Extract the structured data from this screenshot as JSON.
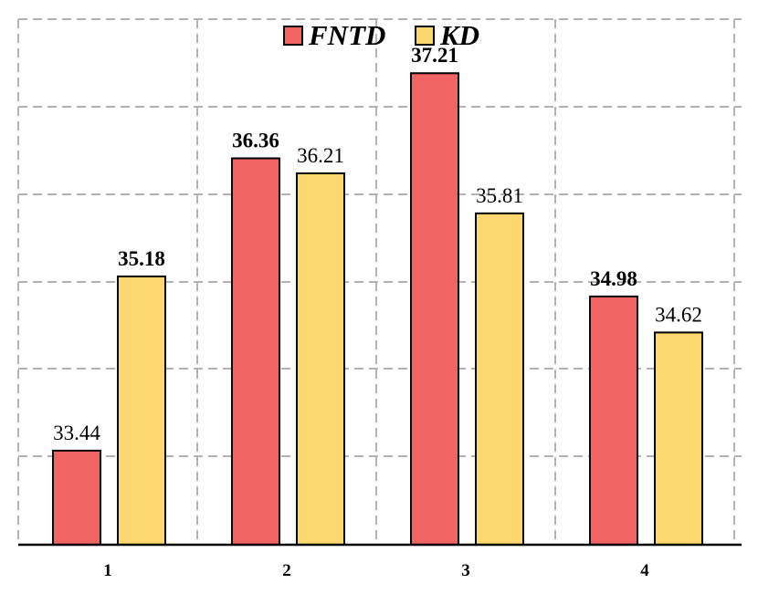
{
  "chart_data": {
    "type": "bar",
    "categories": [
      "1",
      "2",
      "3",
      "4"
    ],
    "series": [
      {
        "name": "FNTD",
        "color": "#f06464",
        "values": [
          33.44,
          36.36,
          37.21,
          34.98
        ],
        "labels": [
          "33.44",
          "36.36",
          "37.21",
          "34.98"
        ],
        "label_bold": [
          false,
          true,
          true,
          true
        ]
      },
      {
        "name": "KD",
        "color": "#fdd870",
        "values": [
          35.18,
          36.21,
          35.81,
          34.62
        ],
        "labels": [
          "35.18",
          "36.21",
          "35.81",
          "34.62"
        ],
        "label_bold": [
          true,
          false,
          false,
          false
        ]
      }
    ],
    "title": "",
    "xlabel": "",
    "ylabel": "",
    "ylim": [
      32.5,
      37.75
    ],
    "grid": true,
    "legend_position": "top-center"
  }
}
